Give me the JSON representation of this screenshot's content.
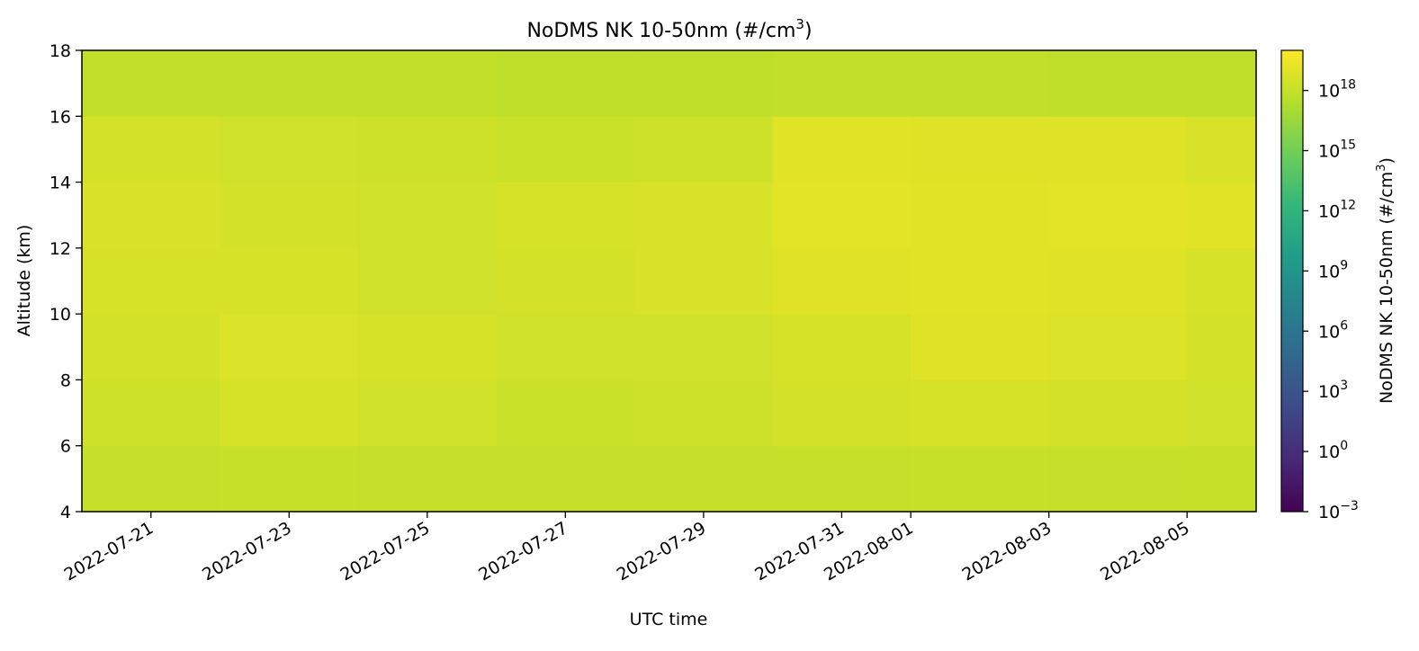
{
  "chart_data": {
    "type": "heatmap",
    "title": "NoDMS NK 10-50nm (#/cm",
    "title_sup": "3",
    "title_end": ")",
    "xlabel": "UTC time",
    "ylabel": "Altitude (km)",
    "colorbar_label": "NoDMS NK 10-50nm (#/cm",
    "colorbar_label_sup": "3",
    "colorbar_label_end": ")",
    "colormap": "viridis",
    "colormap_stops": [
      "#440154",
      "#482878",
      "#3e4989",
      "#31688e",
      "#26828e",
      "#1f9e89",
      "#35b779",
      "#6ece58",
      "#b5de2b",
      "#fde725"
    ],
    "x_start": "2022-07-20",
    "x_end": "2022-08-06",
    "x_ticks": [
      "2022-07-21",
      "2022-07-23",
      "2022-07-25",
      "2022-07-27",
      "2022-07-29",
      "2022-07-31",
      "2022-08-01",
      "2022-08-03",
      "2022-08-05"
    ],
    "y_ticks": [
      4,
      6,
      8,
      10,
      12,
      14,
      16,
      18
    ],
    "ylim": [
      4,
      18
    ],
    "log_scale": true,
    "clim_exp": [
      -3,
      20
    ],
    "cbar_tick_exps": [
      -3,
      0,
      3,
      6,
      9,
      12,
      15,
      18
    ],
    "cbar_tick_base": "10",
    "cell_times": [
      "2022-07-20",
      "2022-07-22",
      "2022-07-24",
      "2022-07-26",
      "2022-07-28",
      "2022-07-30",
      "2022-08-01",
      "2022-08-03",
      "2022-08-05",
      "2022-08-06"
    ],
    "cell_altitudes": [
      4,
      6,
      8,
      10,
      12,
      14,
      16,
      18
    ],
    "cell_log_values": [
      [
        18.0,
        18.1,
        18.0,
        18.0,
        18.0,
        18.0,
        18.1,
        18.0,
        18.1
      ],
      [
        18.3,
        18.6,
        18.4,
        18.2,
        18.3,
        18.5,
        18.6,
        18.5,
        18.4
      ],
      [
        18.5,
        18.8,
        18.6,
        18.4,
        18.4,
        18.6,
        18.9,
        18.8,
        18.5
      ],
      [
        18.6,
        18.6,
        18.4,
        18.5,
        18.7,
        18.9,
        19.0,
        18.9,
        18.6
      ],
      [
        18.7,
        18.5,
        18.4,
        18.6,
        18.7,
        19.1,
        19.0,
        19.1,
        19.0
      ],
      [
        18.5,
        18.4,
        18.3,
        18.2,
        18.3,
        19.0,
        18.9,
        18.9,
        18.7
      ],
      [
        17.9,
        17.9,
        17.9,
        17.8,
        17.8,
        17.9,
        17.9,
        17.8,
        17.8
      ]
    ]
  }
}
